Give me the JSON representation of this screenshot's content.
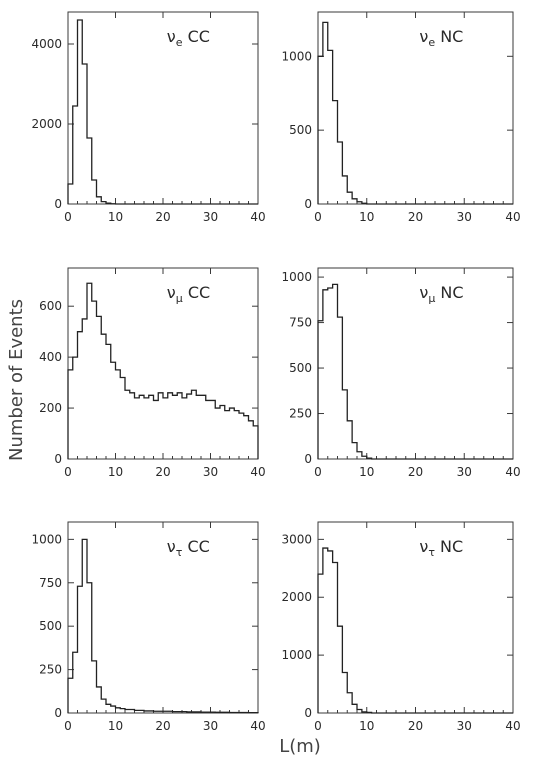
{
  "figure": {
    "ylabel": "Number of Events",
    "xlabel": "L(m)"
  },
  "chart_data": [
    {
      "type": "bar",
      "label_main": "ν",
      "label_sub": "e",
      "label_rest": " CC",
      "xlim": [
        0,
        40
      ],
      "ylim": [
        0,
        4800
      ],
      "xticks": [
        0,
        10,
        20,
        30,
        40
      ],
      "yticks": [
        0,
        2000,
        4000
      ],
      "bin_width": 1,
      "values": [
        500,
        2450,
        4600,
        3500,
        1650,
        600,
        180,
        60,
        20,
        5,
        0,
        0,
        0,
        0,
        0,
        0,
        0,
        0,
        0,
        0,
        0,
        0,
        0,
        0,
        0,
        0,
        0,
        0,
        0,
        0,
        0,
        0,
        0,
        0,
        0,
        0,
        0,
        0,
        0,
        0
      ]
    },
    {
      "type": "bar",
      "label_main": "ν",
      "label_sub": "e",
      "label_rest": " NC",
      "xlim": [
        0,
        40
      ],
      "ylim": [
        0,
        1300
      ],
      "xticks": [
        0,
        10,
        20,
        30,
        40
      ],
      "yticks": [
        0,
        500,
        1000
      ],
      "bin_width": 1,
      "values": [
        1000,
        1230,
        1040,
        700,
        420,
        190,
        80,
        35,
        15,
        5,
        0,
        0,
        0,
        0,
        0,
        0,
        0,
        0,
        0,
        0,
        0,
        0,
        0,
        0,
        0,
        0,
        0,
        0,
        0,
        0,
        0,
        0,
        0,
        0,
        0,
        0,
        0,
        0,
        0,
        0
      ]
    },
    {
      "type": "bar",
      "label_main": "ν",
      "label_sub": "μ",
      "label_rest": " CC",
      "xlim": [
        0,
        40
      ],
      "ylim": [
        0,
        750
      ],
      "xticks": [
        0,
        10,
        20,
        30,
        40
      ],
      "yticks": [
        0,
        200,
        400,
        600
      ],
      "bin_width": 1,
      "values": [
        350,
        400,
        500,
        550,
        690,
        620,
        560,
        490,
        450,
        380,
        350,
        320,
        270,
        260,
        240,
        250,
        240,
        250,
        230,
        260,
        240,
        260,
        250,
        260,
        240,
        255,
        270,
        250,
        250,
        230,
        230,
        200,
        210,
        190,
        200,
        190,
        180,
        170,
        150,
        130
      ]
    },
    {
      "type": "bar",
      "label_main": "ν",
      "label_sub": "μ",
      "label_rest": " NC",
      "xlim": [
        0,
        40
      ],
      "ylim": [
        0,
        1050
      ],
      "xticks": [
        0,
        10,
        20,
        30,
        40
      ],
      "yticks": [
        0,
        250,
        500,
        750,
        1000
      ],
      "bin_width": 1,
      "values": [
        760,
        930,
        940,
        960,
        780,
        380,
        210,
        90,
        40,
        15,
        5,
        0,
        0,
        0,
        0,
        0,
        0,
        0,
        0,
        0,
        0,
        0,
        0,
        0,
        0,
        0,
        0,
        0,
        0,
        0,
        0,
        0,
        0,
        0,
        0,
        0,
        0,
        0,
        0,
        0
      ]
    },
    {
      "type": "bar",
      "label_main": "ν",
      "label_sub": "τ",
      "label_rest": " CC",
      "xlim": [
        0,
        40
      ],
      "ylim": [
        0,
        1100
      ],
      "xticks": [
        0,
        10,
        20,
        30,
        40
      ],
      "yticks": [
        0,
        250,
        500,
        750,
        1000
      ],
      "bin_width": 1,
      "values": [
        200,
        350,
        730,
        1000,
        750,
        300,
        150,
        80,
        50,
        40,
        30,
        25,
        20,
        20,
        15,
        15,
        12,
        12,
        10,
        10,
        10,
        10,
        8,
        8,
        8,
        6,
        6,
        6,
        5,
        5,
        5,
        4,
        4,
        4,
        3,
        3,
        3,
        3,
        2,
        2
      ]
    },
    {
      "type": "bar",
      "label_main": "ν",
      "label_sub": "τ",
      "label_rest": " NC",
      "xlim": [
        0,
        40
      ],
      "ylim": [
        0,
        3300
      ],
      "xticks": [
        0,
        10,
        20,
        30,
        40
      ],
      "yticks": [
        0,
        1000,
        2000,
        3000
      ],
      "bin_width": 1,
      "values": [
        2400,
        2850,
        2800,
        2600,
        1500,
        700,
        350,
        150,
        60,
        20,
        10,
        0,
        0,
        0,
        0,
        0,
        0,
        0,
        0,
        0,
        0,
        0,
        0,
        0,
        0,
        0,
        0,
        0,
        0,
        0,
        0,
        0,
        0,
        0,
        0,
        0,
        0,
        0,
        0,
        0
      ]
    }
  ]
}
